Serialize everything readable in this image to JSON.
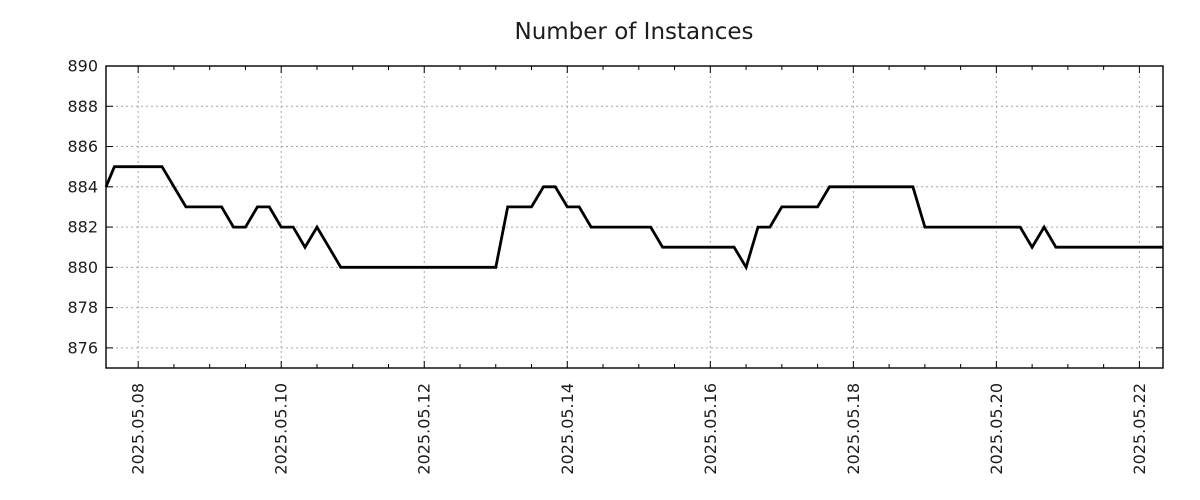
{
  "title": "Number of Instances",
  "colors": {
    "background": "#ffffff",
    "line": "#000000",
    "grid": "#a6a6a6",
    "axis": "#000000",
    "text": "#1c1c1c"
  },
  "chart_data": {
    "type": "line",
    "title": "Number of Instances",
    "xlabel": "",
    "ylabel": "",
    "x_unit": "date, decimal day of 2025-05",
    "xlim": [
      7.55,
      22.33
    ],
    "ylim": [
      875,
      890
    ],
    "y_ticks": [
      876,
      878,
      880,
      882,
      884,
      886,
      888,
      890
    ],
    "x_major_ticks": [
      {
        "value": 8,
        "label": "2025.05.08"
      },
      {
        "value": 10,
        "label": "2025.05.10"
      },
      {
        "value": 12,
        "label": "2025.05.12"
      },
      {
        "value": 14,
        "label": "2025.05.14"
      },
      {
        "value": 16,
        "label": "2025.05.16"
      },
      {
        "value": 18,
        "label": "2025.05.18"
      },
      {
        "value": 20,
        "label": "2025.05.20"
      },
      {
        "value": 22,
        "label": "2025.05.22"
      }
    ],
    "x_minor_step": 0.5,
    "grid": "dotted major gridlines, box border with inward ticks",
    "legend": "none",
    "series": [
      {
        "name": "instances",
        "color": "#000000",
        "points": [
          [
            7.55,
            884
          ],
          [
            7.667,
            885
          ],
          [
            8.333,
            885
          ],
          [
            8.667,
            883
          ],
          [
            9.167,
            883
          ],
          [
            9.333,
            882
          ],
          [
            9.5,
            882
          ],
          [
            9.667,
            883
          ],
          [
            9.833,
            883
          ],
          [
            10.0,
            882
          ],
          [
            10.167,
            882
          ],
          [
            10.333,
            881
          ],
          [
            10.5,
            882
          ],
          [
            10.833,
            880
          ],
          [
            13.0,
            880
          ],
          [
            13.167,
            883
          ],
          [
            13.5,
            883
          ],
          [
            13.667,
            884
          ],
          [
            13.833,
            884
          ],
          [
            14.0,
            883
          ],
          [
            14.167,
            883
          ],
          [
            14.333,
            882
          ],
          [
            15.167,
            882
          ],
          [
            15.333,
            881
          ],
          [
            16.333,
            881
          ],
          [
            16.5,
            880
          ],
          [
            16.667,
            882
          ],
          [
            16.833,
            882
          ],
          [
            17.0,
            883
          ],
          [
            17.5,
            883
          ],
          [
            17.667,
            884
          ],
          [
            18.833,
            884
          ],
          [
            19.0,
            882
          ],
          [
            20.333,
            882
          ],
          [
            20.5,
            881
          ],
          [
            20.667,
            882
          ],
          [
            20.833,
            881
          ],
          [
            22.33,
            881
          ]
        ]
      }
    ]
  }
}
